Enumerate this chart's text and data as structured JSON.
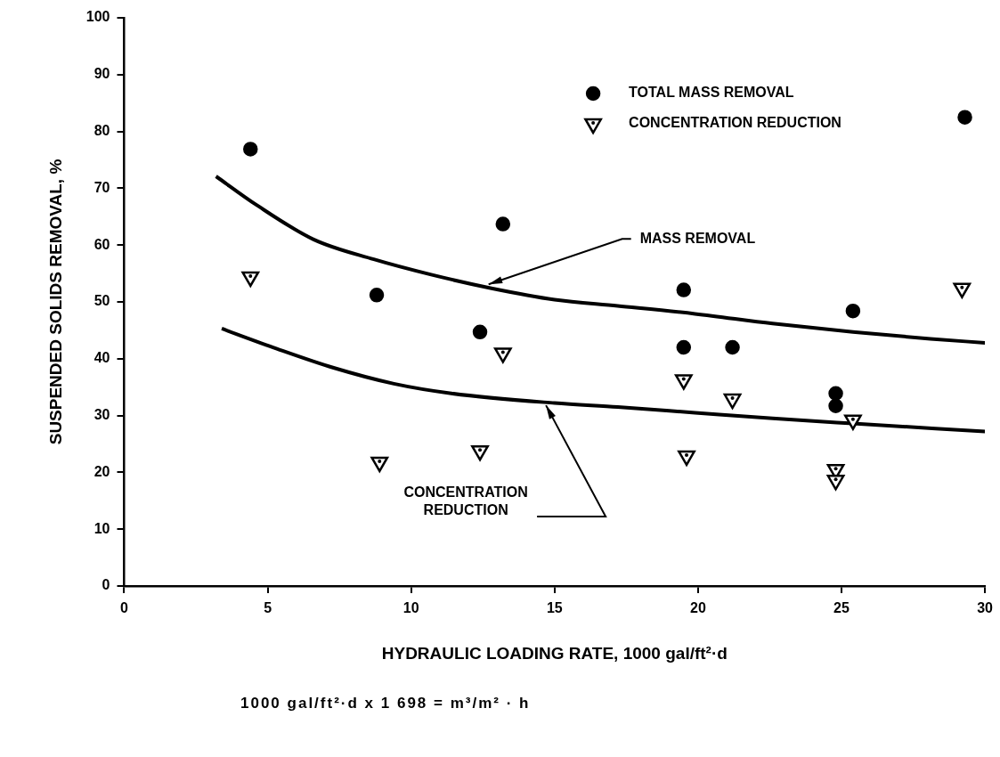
{
  "chart_data": {
    "type": "scatter",
    "xlabel": "HYDRAULIC LOADING RATE, 1000 gal/ft²·d",
    "ylabel": "SUSPENDED SOLIDS REMOVAL, %",
    "xlim": [
      0,
      30
    ],
    "xticks": [
      0,
      5,
      10,
      15,
      20,
      25,
      30
    ],
    "ylim": [
      0,
      100
    ],
    "yticks": [
      0,
      10,
      20,
      30,
      40,
      50,
      60,
      70,
      80,
      90,
      100
    ],
    "grid": false,
    "legend": "top right",
    "series": [
      {
        "name": "TOTAL MASS REMOVAL",
        "type": "scatter",
        "marker": "circle",
        "color": "#000000",
        "x": [
          4.4,
          8.8,
          12.4,
          13.2,
          19.5,
          19.5,
          21.2,
          24.8,
          24.8,
          25.4,
          29.3
        ],
        "values": [
          76.9,
          51.2,
          44.7,
          63.7,
          52.1,
          42.0,
          42.0,
          33.9,
          31.7,
          48.4,
          82.5
        ]
      },
      {
        "name": "CONCENTRATION REDUCTION",
        "type": "scatter",
        "marker": "triangle",
        "color": "#000000",
        "x": [
          4.4,
          8.9,
          12.4,
          13.2,
          19.5,
          19.6,
          21.2,
          24.8,
          24.8,
          25.4,
          29.2
        ],
        "values": [
          54.4,
          21.8,
          23.8,
          41.0,
          36.3,
          22.9,
          32.9,
          20.5,
          18.6,
          29.2,
          52.4
        ]
      },
      {
        "type": "line",
        "color": "#000000",
        "x": [
          3.2,
          4.6,
          6.6,
          8.7,
          10.7,
          12.8,
          15.0,
          17.2,
          19.9,
          22.6,
          25.4,
          28.1,
          30
        ],
        "values": [
          72.1,
          67.1,
          61.0,
          57.5,
          54.8,
          52.4,
          50.4,
          49.3,
          47.9,
          46.2,
          44.7,
          43.5,
          42.8
        ]
      },
      {
        "type": "line",
        "color": "#000000",
        "x": [
          3.4,
          5.3,
          7.3,
          9.4,
          11.4,
          15.0,
          17.2,
          19.9,
          22.6,
          25.4,
          30
        ],
        "values": [
          45.3,
          41.8,
          38.4,
          35.6,
          33.9,
          32.2,
          31.5,
          30.5,
          29.5,
          28.6,
          27.2
        ]
      }
    ],
    "annotations": [
      {
        "text": "MASS REMOVAL",
        "x": 12.7,
        "y": 53.1
      },
      {
        "text": "CONCENTRATION REDUCTION",
        "x": 14.7,
        "y": 31.8
      },
      "1000 gal/ft²·d x 1 698 = m³/m² · h"
    ]
  }
}
